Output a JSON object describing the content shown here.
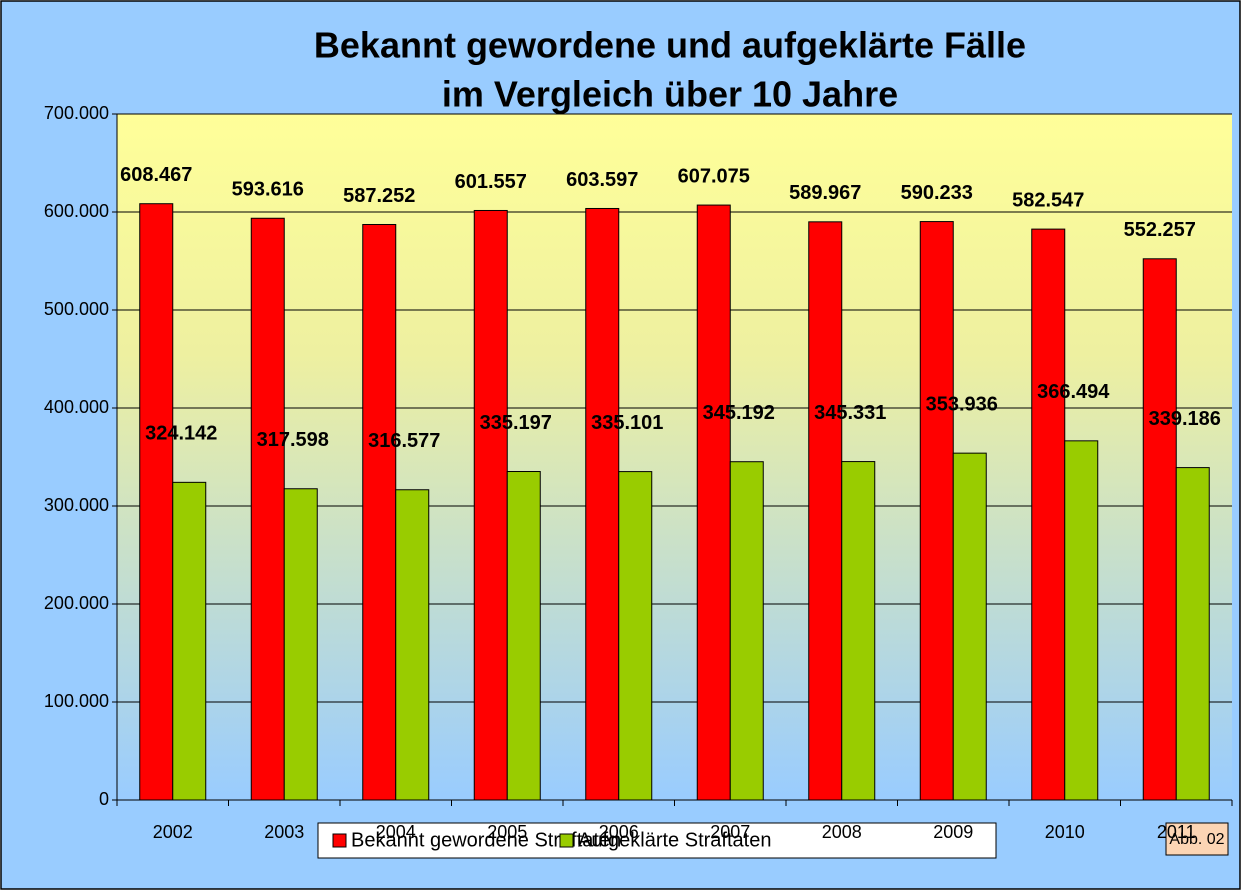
{
  "chart_data": {
    "type": "bar",
    "title": [
      "Bekannt gewordene und aufgeklärte Fälle",
      "im Vergleich über 10 Jahre"
    ],
    "categories": [
      "2002",
      "2003",
      "2004",
      "2005",
      "2006",
      "2007",
      "2008",
      "2009",
      "2010",
      "2011"
    ],
    "series": [
      {
        "name": "Bekannt gewordene Straftaten",
        "color": "#ff0000",
        "values": [
          608467,
          593616,
          587252,
          601557,
          603597,
          607075,
          589967,
          590233,
          582547,
          552257
        ],
        "value_labels": [
          "608.467",
          "593.616",
          "587.252",
          "601.557",
          "603.597",
          "607.075",
          "589.967",
          "590.233",
          "582.547",
          "552.257"
        ]
      },
      {
        "name": "Aufgeklärte Straftaten",
        "color": "#99cc00",
        "values": [
          324142,
          317598,
          316577,
          335197,
          335101,
          345192,
          345331,
          353936,
          366494,
          339186
        ],
        "value_labels": [
          "324.142",
          "317.598",
          "316.577",
          "335.197",
          "335.101",
          "345.192",
          "345.331",
          "353.936",
          "366.494",
          "339.186"
        ]
      }
    ],
    "ylim": [
      0,
      700000
    ],
    "yticks": [
      0,
      {
        "value": 100000,
        "label": "100.000"
      },
      {
        "value": 200000,
        "label": "200.000"
      },
      {
        "value": 300000,
        "label": "300.000"
      },
      {
        "value": 400000,
        "label": "400.000"
      },
      {
        "value": 500000,
        "label": "500.000"
      },
      {
        "value": 600000,
        "label": "600.000"
      },
      {
        "value": 700000,
        "label": "700.000"
      }
    ],
    "grid": true,
    "legend": "bottom",
    "annotation": "Abb. 02"
  }
}
